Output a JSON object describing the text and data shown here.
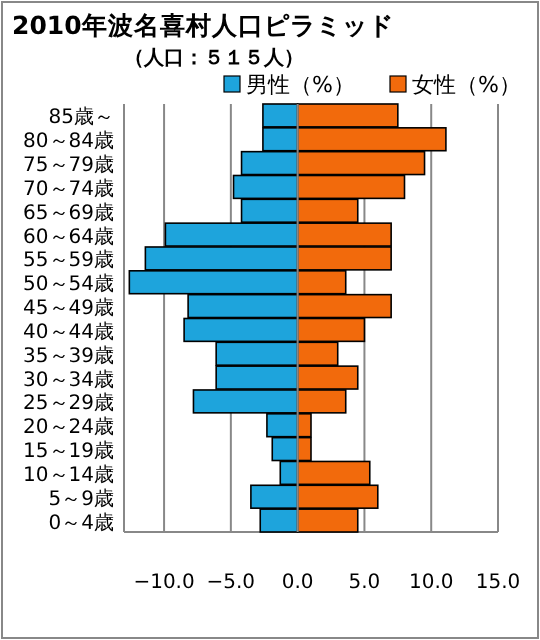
{
  "chart_data": {
    "type": "bar",
    "orientation": "horizontal",
    "title": "2010年波名喜村人口ピラミッド",
    "subtitle": "（人口：５１５人）",
    "categories": [
      "85歳～",
      "80～84歳",
      "75～79歳",
      "70～74歳",
      "65～69歳",
      "60～64歳",
      "55～59歳",
      "50～54歳",
      "45～49歳",
      "40～44歳",
      "35～39歳",
      "30～34歳",
      "25～29歳",
      "20～24歳",
      "15～19歳",
      "10～14歳",
      "5～9歳",
      "0～4歳"
    ],
    "series": [
      {
        "name": "男性（%）",
        "color": "#1ea4dc",
        "values": [
          -2.6,
          -2.6,
          -4.2,
          -4.8,
          -4.2,
          -9.9,
          -11.4,
          -12.6,
          -8.2,
          -8.5,
          -6.1,
          -6.1,
          -7.8,
          -2.3,
          -1.9,
          -1.3,
          -3.5,
          -2.8
        ]
      },
      {
        "name": "女性（%）",
        "color": "#f26a0c",
        "values": [
          7.5,
          11.1,
          9.5,
          8.0,
          4.5,
          7.0,
          7.0,
          3.6,
          7.0,
          5.0,
          3.0,
          4.5,
          3.6,
          1.0,
          1.0,
          5.4,
          6.0,
          4.5
        ]
      }
    ],
    "xlim": [
      -13,
      15
    ],
    "stacked": true,
    "xticks": [
      {
        "value": -10,
        "label": "−10.0"
      },
      {
        "value": -5,
        "label": "−5.0"
      },
      {
        "value": 0,
        "label": "0.0"
      },
      {
        "value": 5,
        "label": "5.0"
      },
      {
        "value": 10,
        "label": "10.0"
      },
      {
        "value": 15,
        "label": "15.0"
      }
    ],
    "grid": "x",
    "legend": "top"
  }
}
